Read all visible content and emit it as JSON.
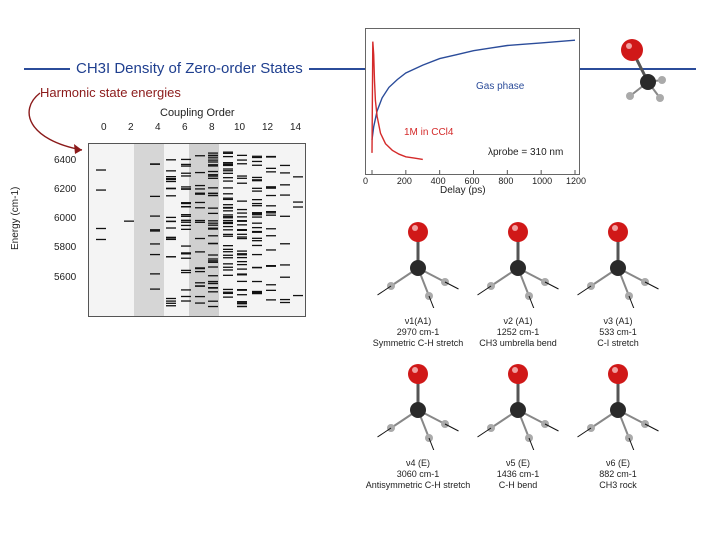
{
  "title": "CH3I Density of Zero-order States",
  "harmonic_label": "Harmonic state energies",
  "energy_chart": {
    "xlabel": "Coupling Order",
    "ylabel": "Energy (cm-1)",
    "x_ticks": [
      "0",
      "2",
      "4",
      "6",
      "8",
      "10",
      "12",
      "14"
    ],
    "y_ticks": [
      "6400",
      "6200",
      "6000",
      "5800",
      "5600"
    ]
  },
  "chart_data": {
    "type": "line",
    "title": "",
    "xlabel": "Delay (ps)",
    "ylabel": "",
    "xlim": [
      0,
      1200
    ],
    "x_ticks": [
      "0",
      "200",
      "400",
      "600",
      "800",
      "1000",
      "1200"
    ],
    "series": [
      {
        "name": "Gas phase",
        "x": [
          0,
          10,
          30,
          60,
          100,
          150,
          200,
          300,
          400,
          500,
          600,
          700,
          800,
          900,
          1000,
          1100,
          1200
        ],
        "values": [
          0.2,
          0.3,
          0.42,
          0.52,
          0.6,
          0.66,
          0.71,
          0.77,
          0.82,
          0.85,
          0.88,
          0.9,
          0.92,
          0.93,
          0.94,
          0.95,
          0.96
        ]
      },
      {
        "name": "1M in CCl4",
        "x": [
          0,
          5,
          10,
          15,
          20,
          30,
          50,
          80,
          120,
          160,
          200,
          250,
          300
        ],
        "values": [
          0.1,
          0.95,
          0.85,
          0.65,
          0.5,
          0.38,
          0.25,
          0.17,
          0.12,
          0.09,
          0.07,
          0.06,
          0.05
        ]
      }
    ],
    "annotation": "λprobe = 310 nm",
    "colors": {
      "gas": "#2b4c9a",
      "solution": "#d42a2a"
    }
  },
  "modes": [
    {
      "title": "ν1(A1)",
      "freq": "2970 cm-1",
      "desc": "Symmetric C-H stretch"
    },
    {
      "title": "ν2 (A1)",
      "freq": "1252 cm-1",
      "desc": "CH3 umbrella bend"
    },
    {
      "title": "ν3 (A1)",
      "freq": "533 cm-1",
      "desc": "C-I stretch"
    },
    {
      "title": "ν4 (E)",
      "freq": "3060 cm-1",
      "desc": "Antisymmetric C-H stretch"
    },
    {
      "title": "ν5 (E)",
      "freq": "1436 cm-1",
      "desc": "C-H bend"
    },
    {
      "title": "ν6 (E)",
      "freq": "882 cm-1",
      "desc": "CH3 rock"
    }
  ]
}
